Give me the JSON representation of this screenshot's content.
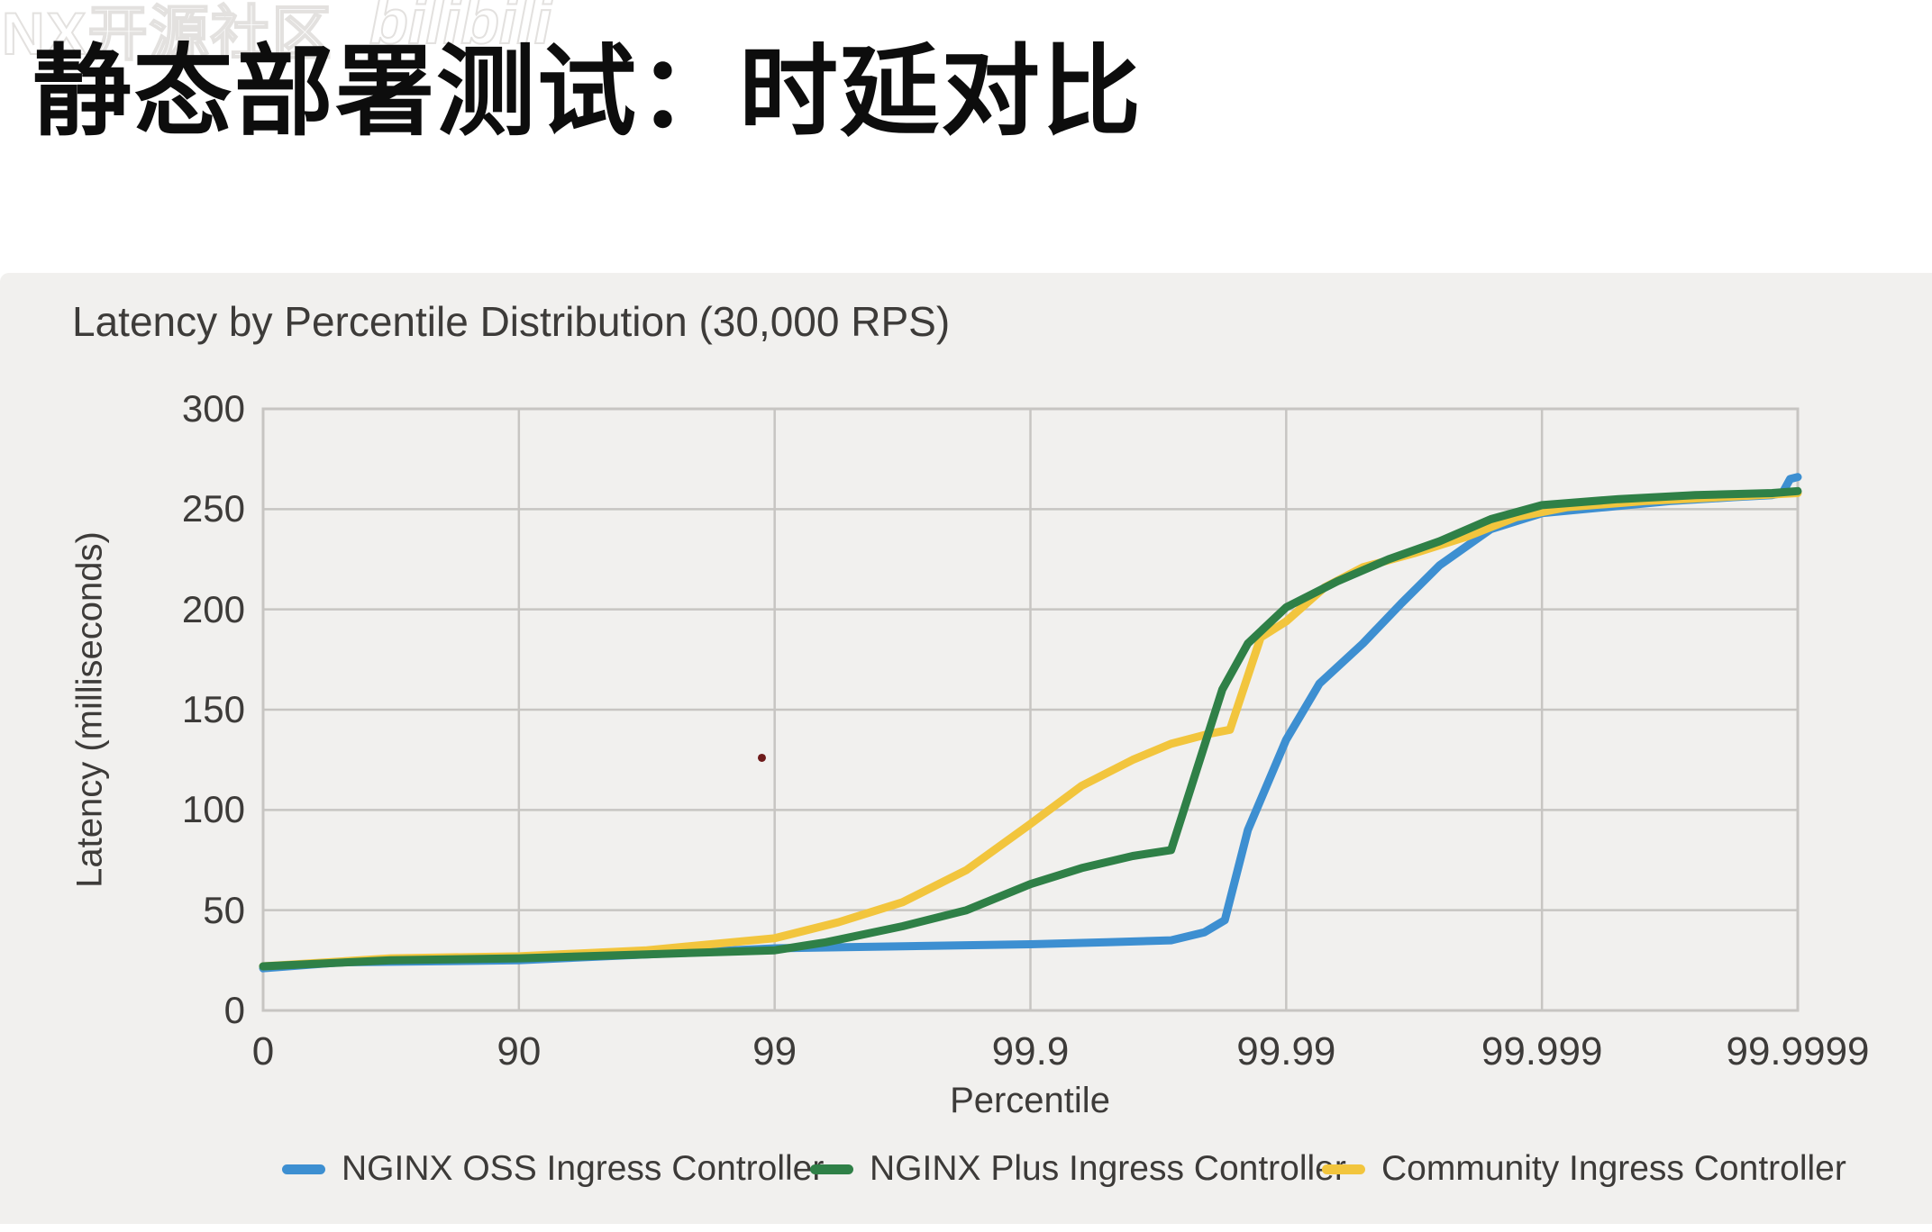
{
  "page": {
    "title": "静态部署测试：时延对比"
  },
  "watermarks": {
    "left": "NX开源社区",
    "right": "bilibili"
  },
  "chart": {
    "title": "Latency by Percentile Distribution (30,000 RPS)",
    "x_axis": {
      "label": "Percentile",
      "ticks": [
        "0",
        "90",
        "99",
        "99.9",
        "99.99",
        "99.999",
        "99.9999"
      ]
    },
    "y_axis": {
      "label": "Latency (milliseconds)",
      "ticks": [
        300,
        250,
        200,
        150,
        100,
        50,
        0
      ]
    }
  },
  "chart_data": {
    "type": "line",
    "title": "Latency by Percentile Distribution (30,000 RPS)",
    "xlabel": "Percentile",
    "ylabel": "Latency (milliseconds)",
    "x_scale": "log-percentile: u = number of nines, ticks at u=0..6",
    "x_tick_labels": [
      "0",
      "90",
      "99",
      "99.9",
      "99.99",
      "99.999",
      "99.9999"
    ],
    "ylim": [
      0,
      300
    ],
    "grid": true,
    "legend_position": "bottom",
    "series": [
      {
        "name": "NGINX OSS Ingress Controller",
        "color": "#3d8fd1",
        "points_u_ms": [
          [
            0,
            21
          ],
          [
            0.3,
            24
          ],
          [
            1,
            25
          ],
          [
            1.5,
            28
          ],
          [
            2,
            31
          ],
          [
            2.5,
            32
          ],
          [
            3,
            33
          ],
          [
            3.3,
            34
          ],
          [
            3.55,
            35
          ],
          [
            3.68,
            39
          ],
          [
            3.76,
            45
          ],
          [
            3.85,
            90
          ],
          [
            4,
            135
          ],
          [
            4.13,
            163
          ],
          [
            4.3,
            183
          ],
          [
            4.45,
            203
          ],
          [
            4.6,
            222
          ],
          [
            4.8,
            240
          ],
          [
            5,
            248
          ],
          [
            5.25,
            251
          ],
          [
            5.5,
            254
          ],
          [
            5.75,
            256
          ],
          [
            5.9,
            257
          ],
          [
            5.94,
            258
          ],
          [
            5.97,
            265
          ],
          [
            6,
            266
          ]
        ]
      },
      {
        "name": "Community Ingress Controller",
        "color": "#f2c53d",
        "points_u_ms": [
          [
            0,
            22
          ],
          [
            0.5,
            26
          ],
          [
            1,
            27
          ],
          [
            1.5,
            30
          ],
          [
            2,
            36
          ],
          [
            2.25,
            44
          ],
          [
            2.5,
            54
          ],
          [
            2.75,
            70
          ],
          [
            3,
            93
          ],
          [
            3.2,
            112
          ],
          [
            3.4,
            125
          ],
          [
            3.55,
            133
          ],
          [
            3.7,
            138
          ],
          [
            3.78,
            140
          ],
          [
            3.9,
            186
          ],
          [
            4,
            194
          ],
          [
            4.15,
            211
          ],
          [
            4.3,
            221
          ],
          [
            4.5,
            228
          ],
          [
            4.7,
            236
          ],
          [
            4.9,
            246
          ],
          [
            5.1,
            251
          ],
          [
            5.4,
            254
          ],
          [
            5.7,
            256
          ],
          [
            6,
            258
          ]
        ]
      },
      {
        "name": "NGINX Plus Ingress Controller",
        "color": "#2f8047",
        "points_u_ms": [
          [
            0,
            22
          ],
          [
            0.5,
            25
          ],
          [
            1,
            26
          ],
          [
            1.5,
            28
          ],
          [
            2,
            30
          ],
          [
            2.2,
            34
          ],
          [
            2.5,
            42
          ],
          [
            2.75,
            50
          ],
          [
            3,
            63
          ],
          [
            3.2,
            71
          ],
          [
            3.4,
            77
          ],
          [
            3.55,
            80
          ],
          [
            3.65,
            120
          ],
          [
            3.75,
            160
          ],
          [
            3.85,
            183
          ],
          [
            4,
            201
          ],
          [
            4.2,
            214
          ],
          [
            4.4,
            225
          ],
          [
            4.6,
            234
          ],
          [
            4.8,
            245
          ],
          [
            5,
            252
          ],
          [
            5.3,
            255
          ],
          [
            5.6,
            257
          ],
          [
            5.9,
            258
          ],
          [
            6,
            259
          ]
        ]
      }
    ],
    "legend_order": [
      "NGINX OSS Ingress Controller",
      "NGINX Plus Ingress Controller",
      "Community Ingress Controller"
    ],
    "annotations": [
      {
        "type": "dot",
        "u": 1.95,
        "ms": 126,
        "color": "#6e1b1b"
      }
    ]
  }
}
